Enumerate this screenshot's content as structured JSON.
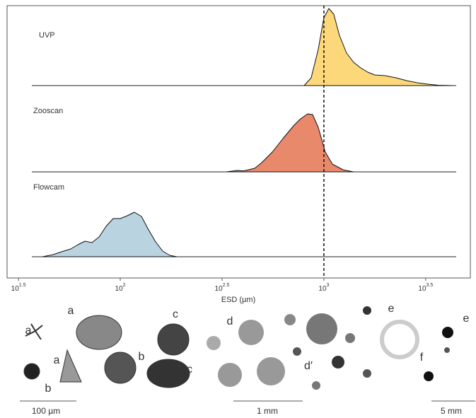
{
  "chart_data": {
    "type": "ridgeline",
    "xlabel": "ESD (µm)",
    "log_x": true,
    "xlim": [
      27.8,
      5240
    ],
    "xticks": [
      {
        "value": 31.62,
        "label": [
          "10",
          "1.5"
        ]
      },
      {
        "value": 100,
        "label": [
          "10",
          "2"
        ]
      },
      {
        "value": 316.2,
        "label": [
          "10",
          "2.5"
        ]
      },
      {
        "value": 1000,
        "label": [
          "10",
          "3"
        ]
      },
      {
        "value": 3162,
        "label": [
          "10",
          "3.5"
        ]
      }
    ],
    "ylim": [
      0,
      110
    ],
    "reference_x": 1000,
    "series": [
      {
        "name": "UVP",
        "color": "#fdd87a",
        "x": [
          800,
          866,
          938,
          1000,
          1058,
          1118,
          1192,
          1292,
          1399,
          1516,
          1642,
          1778,
          2005,
          2260,
          2548,
          2873,
          3238,
          3652,
          4284
        ],
        "values": [
          0,
          11,
          51,
          96,
          109,
          101,
          71,
          46,
          33,
          25,
          19,
          15,
          14,
          11,
          7,
          4,
          2,
          0.5,
          0
        ]
      },
      {
        "name": "Zooscan",
        "color": "#e8896c",
        "x": [
          331.8,
          374,
          405,
          457,
          495,
          558,
          629,
          709,
          768,
          832,
          880,
          938,
          1016,
          1101,
          1241,
          1399
        ],
        "values": [
          0,
          2,
          1.5,
          5,
          13,
          28,
          47,
          65,
          75,
          82,
          81,
          63,
          28,
          11,
          3,
          0
        ]
      },
      {
        "name": "Flowcam",
        "color": "#b9d3e0",
        "x": [
          41.5,
          46.8,
          52.7,
          57.1,
          61.9,
          67.1,
          72.6,
          78.7,
          85.2,
          92.3,
          100,
          108.3,
          117.3,
          127.1,
          137.7,
          149.2,
          161.5,
          175,
          189.6
        ],
        "values": [
          0,
          3,
          8,
          11,
          17,
          22,
          20,
          28,
          43,
          54,
          54,
          58,
          63,
          57,
          38,
          21,
          8,
          2,
          0
        ]
      }
    ]
  },
  "specimens": {
    "labels": [
      "a",
      "a",
      "a",
      "b",
      "b",
      "c",
      "c",
      "d",
      "d′",
      "e",
      "e",
      "f"
    ],
    "scale_bars": [
      "100 µm",
      "1 mm",
      "5 mm"
    ]
  }
}
